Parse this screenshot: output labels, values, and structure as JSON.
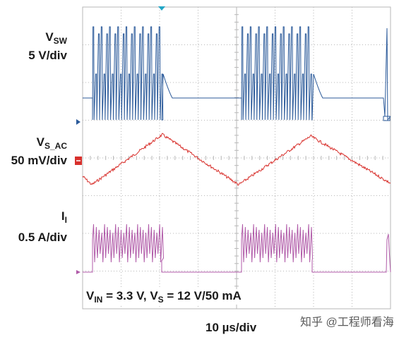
{
  "channels": [
    {
      "id": "vsw",
      "name_main": "V",
      "name_sub": "SW",
      "scale": "5 V/div",
      "color": "#2b5a9a"
    },
    {
      "id": "vsac",
      "name_main": "V",
      "name_sub": "S_AC",
      "scale": "50 mV/div",
      "color": "#d8302c"
    },
    {
      "id": "il",
      "name_main": "I",
      "name_sub": "I",
      "scale": "0.5 A/div",
      "color": "#b05aa8"
    }
  ],
  "conditions": {
    "vin_main": "V",
    "vin_sub": "IN",
    "vin_value": " = 3.3 V, ",
    "vs_main": "V",
    "vs_sub": "S",
    "vs_value": " = 12 V/50 mA"
  },
  "timebase": "10 µs/div",
  "watermark": "知乎 @工程师看海",
  "colors": {
    "grid": "#b7b7b7",
    "trigger_marker": "#22a6c6",
    "ch2_marker": "#d8302c"
  }
}
